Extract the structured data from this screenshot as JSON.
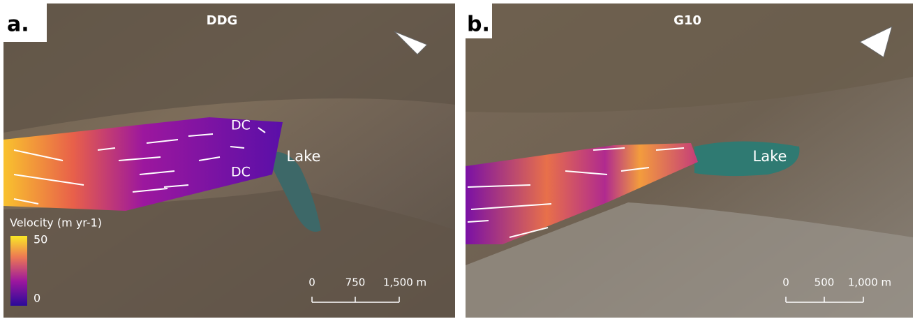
{
  "panels": [
    {
      "label": "a.",
      "title": "DDG",
      "annotations": [
        "DC",
        "DC",
        "Lake"
      ],
      "legend": {
        "title": "Velocity (m yr-1)",
        "max": "50",
        "min": "0"
      },
      "scale_bar": [
        "0",
        "750",
        "1,500 m"
      ]
    },
    {
      "label": "b.",
      "title": "G10",
      "annotations": [
        "Lake"
      ],
      "scale_bar": [
        "0",
        "500",
        "1,000 m"
      ]
    }
  ]
}
